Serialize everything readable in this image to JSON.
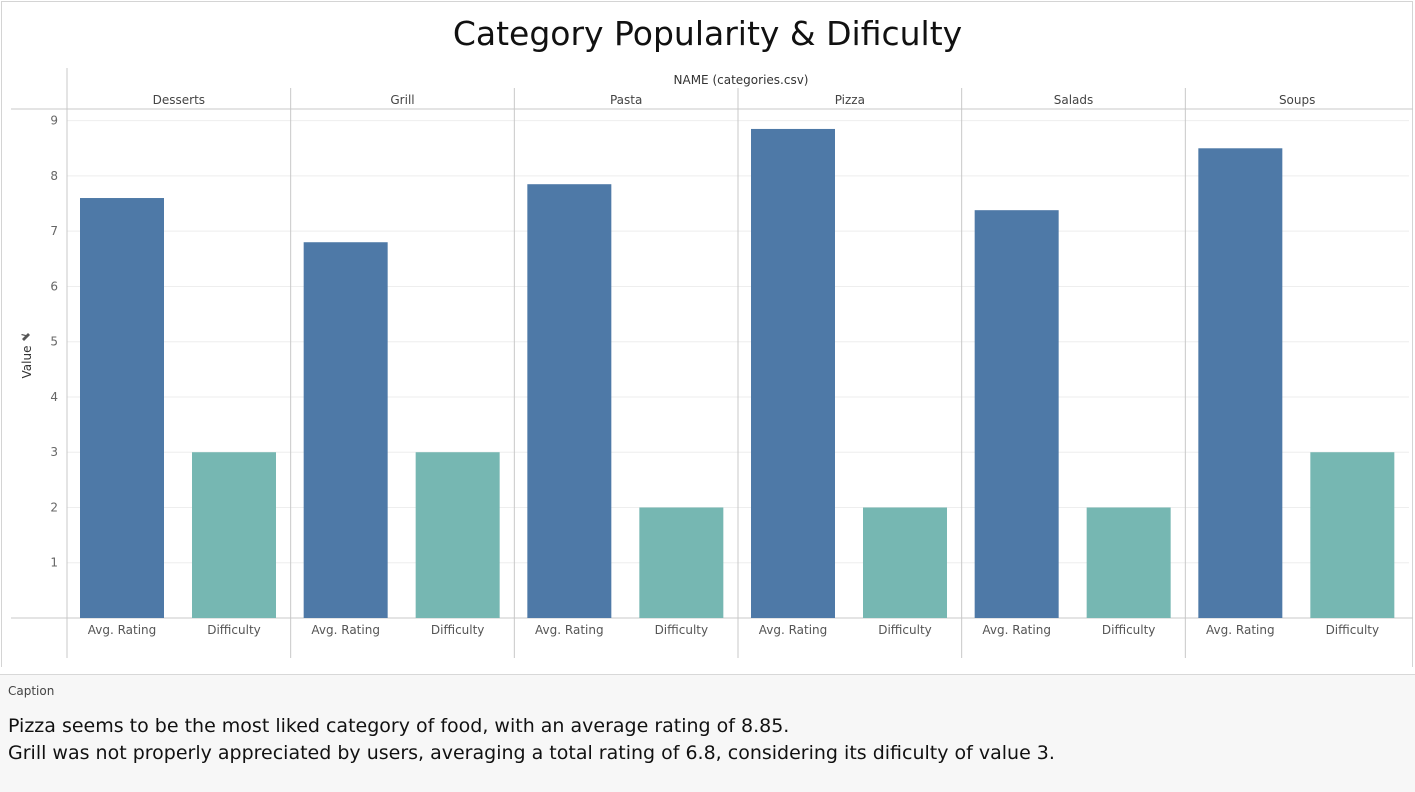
{
  "colors": {
    "avg_rating": "#4e79a7",
    "difficulty": "#76b7b2",
    "gridline": "#eeeeee",
    "divider": "#c8c8c8"
  },
  "caption": {
    "label": "Caption",
    "lines": [
      "Pizza seems to be the most liked category of food, with an average rating of 8.85.",
      "Grill was not properly appreciated by users, averaging a total rating of 6.8, considering its dificulty of value 3."
    ]
  },
  "chart_data": {
    "type": "bar",
    "title": "Category Popularity & Dificulty",
    "column_header": "NAME (categories.csv)",
    "ylabel": "Value",
    "ylabel_icon": "pin-icon",
    "ylim": [
      0,
      9.6
    ],
    "yticks": [
      1,
      2,
      3,
      4,
      5,
      6,
      7,
      8,
      9
    ],
    "grid": true,
    "categories": [
      "Desserts",
      "Grill",
      "Pasta",
      "Pizza",
      "Salads",
      "Soups"
    ],
    "measures": [
      "Avg. Rating",
      "Difficulty"
    ],
    "series": [
      {
        "name": "Avg. Rating",
        "values": [
          7.6,
          6.8,
          7.85,
          8.85,
          7.38,
          8.5
        ]
      },
      {
        "name": "Difficulty",
        "values": [
          3,
          3,
          2,
          2,
          2,
          3
        ]
      }
    ]
  }
}
